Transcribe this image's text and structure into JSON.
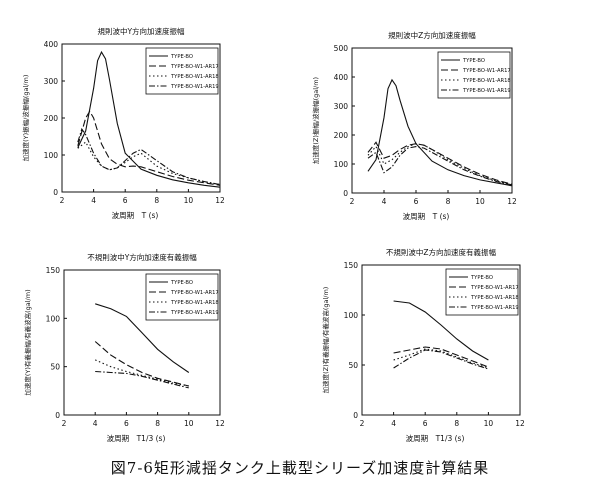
{
  "caption": "図7-6矩形減揺タンク上載型シリーズ加速度計算結果",
  "chart_data": [
    {
      "type": "line",
      "title": "規則波中Y方向加速度振幅",
      "xlabel": "波周期　T (s)",
      "ylabel": "加速度(Y)振幅/波振幅(gal/m)",
      "xlim": [
        2,
        12
      ],
      "ylim": [
        0,
        400
      ],
      "xticks": [
        2,
        4,
        6,
        8,
        10,
        12
      ],
      "yticks": [
        0,
        100,
        200,
        300,
        400
      ],
      "legend": "top-right",
      "series": [
        {
          "name": "TYPE-BO",
          "style": "solid",
          "x": [
            3.0,
            3.5,
            4.0,
            4.25,
            4.5,
            4.75,
            5.0,
            5.5,
            6.0,
            7.0,
            8.0,
            9.0,
            10.0,
            11.0,
            12.0
          ],
          "y": [
            120,
            165,
            280,
            355,
            378,
            360,
            305,
            185,
            105,
            62,
            45,
            33,
            25,
            18,
            13
          ]
        },
        {
          "name": "TYPE-BO-W1-AR17",
          "style": "longdash",
          "x": [
            3.0,
            3.5,
            3.75,
            4.0,
            4.5,
            5.0,
            5.5,
            6.0,
            6.5,
            7.0,
            8.0,
            9.0,
            10.0,
            11.0,
            12.0
          ],
          "y": [
            125,
            200,
            218,
            200,
            130,
            90,
            75,
            68,
            70,
            68,
            55,
            42,
            32,
            25,
            18
          ]
        },
        {
          "name": "TYPE-BO-W1-AR18",
          "style": "dotted",
          "x": [
            3.0,
            3.5,
            4.0,
            4.5,
            5.0,
            5.5,
            6.0,
            6.5,
            7.0,
            8.0,
            9.0,
            10.0,
            11.0,
            12.0
          ],
          "y": [
            118,
            135,
            95,
            70,
            60,
            65,
            80,
            95,
            105,
            70,
            50,
            38,
            28,
            20
          ]
        },
        {
          "name": "TYPE-BO-W1-AR19",
          "style": "dashdot",
          "x": [
            3.0,
            3.25,
            3.5,
            4.0,
            4.5,
            5.0,
            5.5,
            6.0,
            6.5,
            7.0,
            7.5,
            8.0,
            9.0,
            10.0,
            11.0,
            12.0
          ],
          "y": [
            135,
            170,
            155,
            105,
            70,
            60,
            65,
            85,
            105,
            115,
            100,
            85,
            55,
            38,
            28,
            20
          ]
        }
      ]
    },
    {
      "type": "line",
      "title": "規則波中Z方向加速度振幅",
      "xlabel": "波周期　T (s)",
      "ylabel": "加速度(Z)振幅/波振幅(gal/m)",
      "xlim": [
        2,
        12
      ],
      "ylim": [
        0,
        500
      ],
      "xticks": [
        2,
        4,
        6,
        8,
        10,
        12
      ],
      "yticks": [
        0,
        100,
        200,
        300,
        400,
        500
      ],
      "legend": "top-right",
      "series": [
        {
          "name": "TYPE-BO",
          "style": "solid",
          "x": [
            3.0,
            3.5,
            4.0,
            4.25,
            4.5,
            4.75,
            5.0,
            5.5,
            6.0,
            7.0,
            8.0,
            9.0,
            10.0,
            11.0,
            12.0
          ],
          "y": [
            75,
            115,
            260,
            360,
            390,
            370,
            320,
            230,
            170,
            110,
            80,
            60,
            45,
            35,
            25
          ]
        },
        {
          "name": "TYPE-BO-W1-AR17",
          "style": "longdash",
          "x": [
            3.0,
            3.5,
            4.0,
            4.5,
            5.0,
            5.5,
            6.0,
            6.5,
            7.0,
            8.0,
            9.0,
            10.0,
            11.0,
            12.0
          ],
          "y": [
            140,
            175,
            120,
            130,
            150,
            165,
            170,
            165,
            150,
            120,
            90,
            65,
            45,
            30
          ]
        },
        {
          "name": "TYPE-BO-W1-AR18",
          "style": "dotted",
          "x": [
            3.0,
            3.5,
            4.0,
            4.5,
            5.0,
            5.5,
            6.0,
            6.5,
            7.0,
            8.0,
            9.0,
            10.0,
            11.0,
            12.0
          ],
          "y": [
            130,
            160,
            100,
            115,
            140,
            160,
            170,
            165,
            150,
            115,
            85,
            60,
            42,
            28
          ]
        },
        {
          "name": "TYPE-BO-W1-AR19",
          "style": "dashdot",
          "x": [
            3.0,
            3.5,
            4.0,
            4.5,
            5.0,
            5.5,
            6.0,
            6.5,
            7.0,
            8.0,
            9.0,
            10.0,
            11.0,
            12.0
          ],
          "y": [
            120,
            140,
            70,
            90,
            130,
            155,
            160,
            155,
            140,
            110,
            80,
            58,
            40,
            28
          ]
        }
      ]
    },
    {
      "type": "line",
      "title": "不規則波中Y方向加速度有義振幅",
      "xlabel": "波周期　T1/3 (s)",
      "ylabel": "加速度(Y)有義振幅/有義波高(gal/m)",
      "xlim": [
        2,
        12
      ],
      "ylim": [
        0,
        150
      ],
      "xticks": [
        2,
        4,
        6,
        8,
        10,
        12
      ],
      "yticks": [
        0,
        50,
        100,
        150
      ],
      "legend": "top-right",
      "series": [
        {
          "name": "TYPE-BO",
          "style": "solid",
          "x": [
            4,
            5,
            6,
            7,
            8,
            9,
            10
          ],
          "y": [
            115,
            110,
            102,
            85,
            68,
            55,
            44
          ]
        },
        {
          "name": "TYPE-BO-W1-AR17",
          "style": "longdash",
          "x": [
            4,
            5,
            6,
            7,
            8,
            9,
            10
          ],
          "y": [
            76,
            62,
            52,
            44,
            38,
            34,
            30
          ]
        },
        {
          "name": "TYPE-BO-W1-AR18",
          "style": "dotted",
          "x": [
            4,
            5,
            6,
            7,
            8,
            9,
            10
          ],
          "y": [
            57,
            50,
            45,
            41,
            37,
            33,
            30
          ]
        },
        {
          "name": "TYPE-BO-W1-AR19",
          "style": "dashdot",
          "x": [
            4,
            5,
            6,
            7,
            8,
            9,
            10
          ],
          "y": [
            45,
            44,
            43,
            40,
            36,
            32,
            28
          ]
        }
      ]
    },
    {
      "type": "line",
      "title": "不規則波中Z方向加速度有義振幅",
      "xlabel": "波周期　T1/3 (s)",
      "ylabel": "加速度(Z)有義振幅/有義波高(gal/m)",
      "xlim": [
        2,
        12
      ],
      "ylim": [
        0,
        150
      ],
      "xticks": [
        2,
        4,
        6,
        8,
        10,
        12
      ],
      "yticks": [
        0,
        50,
        100,
        150
      ],
      "legend": "top-right",
      "series": [
        {
          "name": "TYPE-BO",
          "style": "solid",
          "x": [
            4,
            5,
            6,
            7,
            8,
            9,
            10
          ],
          "y": [
            114,
            112,
            103,
            90,
            76,
            64,
            55
          ]
        },
        {
          "name": "TYPE-BO-W1-AR17",
          "style": "longdash",
          "x": [
            4,
            5,
            6,
            7,
            8,
            9,
            10
          ],
          "y": [
            62,
            65,
            68,
            66,
            60,
            54,
            48
          ]
        },
        {
          "name": "TYPE-BO-W1-AR18",
          "style": "dotted",
          "x": [
            4,
            5,
            6,
            7,
            8,
            9,
            10
          ],
          "y": [
            55,
            60,
            66,
            64,
            58,
            52,
            47
          ]
        },
        {
          "name": "TYPE-BO-W1-AR19",
          "style": "dashdot",
          "x": [
            4,
            5,
            6,
            7,
            8,
            9,
            10
          ],
          "y": [
            47,
            57,
            65,
            63,
            57,
            51,
            46
          ]
        }
      ]
    }
  ]
}
